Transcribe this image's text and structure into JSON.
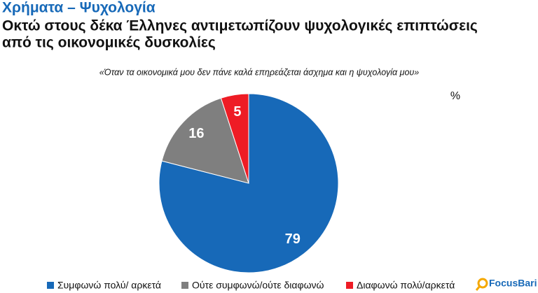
{
  "section": "Χρήματα – Ψυχολογία",
  "title_lines": [
    "Οκτώ στους δέκα Έλληνες αντιμετωπίζουν ψυχολογικές επιπτώσεις",
    "από τις οικονομικές δυσκολίες"
  ],
  "logo": "FocusBari",
  "chart_data": {
    "type": "pie",
    "subtitle": "«Όταν τα οικονομικά μου δεν πάνε καλά επηρεάζεται άσχημα και η ψυχολογία μου»",
    "unit": "%",
    "categories": [
      "Συμφωνώ πολύ/ αρκετά",
      "Ούτε συμφωνώ/ούτε διαφωνώ",
      "Διαφωνώ πολύ/αρκετά"
    ],
    "values": [
      79,
      16,
      5
    ],
    "colors": [
      "#1769b8",
      "#7f7f7f",
      "#ee1c25"
    ]
  }
}
